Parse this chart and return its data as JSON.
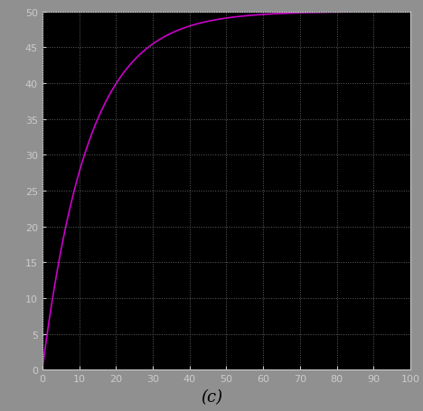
{
  "title": "",
  "xlabel": "",
  "ylabel": "",
  "xlim": [
    0,
    100
  ],
  "ylim": [
    0,
    50
  ],
  "xticks": [
    0,
    10,
    20,
    30,
    40,
    50,
    60,
    70,
    80,
    90,
    100
  ],
  "yticks": [
    0,
    5,
    10,
    15,
    20,
    25,
    30,
    35,
    40,
    45,
    50
  ],
  "setpoint": 50,
  "setpoint_color": "#c8c800",
  "response_color": "#cc00cc",
  "background_color": "#000000",
  "figure_facecolor": "#909090",
  "grid_color": "#606060",
  "tick_color": "#cccccc",
  "label_color": "#cccccc",
  "caption": "(c)",
  "caption_fontsize": 13,
  "response_tau": 12.5,
  "response_amplitude": 50,
  "line_width": 1.2,
  "grid_linestyle": ":",
  "grid_linewidth": 0.7
}
